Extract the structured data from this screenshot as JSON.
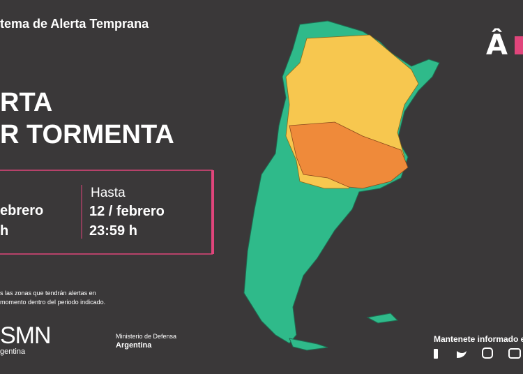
{
  "header": {
    "title": "tema de Alerta Temprana"
  },
  "alert": {
    "line1": "RTA",
    "line2": "R TORMENTA"
  },
  "period": {
    "from_date": "ebrero",
    "from_time": "h",
    "to_label": "Hasta",
    "to_date": "12 / febrero",
    "to_time": "23:59 h"
  },
  "note": {
    "line1": "s las zonas que tendrán alertas en",
    "line2": "momento dentro del periodo indicado."
  },
  "logos": {
    "smn": "SMN",
    "smn_sub": "gentina",
    "ministry": "Ministerio de Defensa",
    "ministry_sub": "Argentina"
  },
  "footer": {
    "follow": "Mantenete informado e"
  }
}
